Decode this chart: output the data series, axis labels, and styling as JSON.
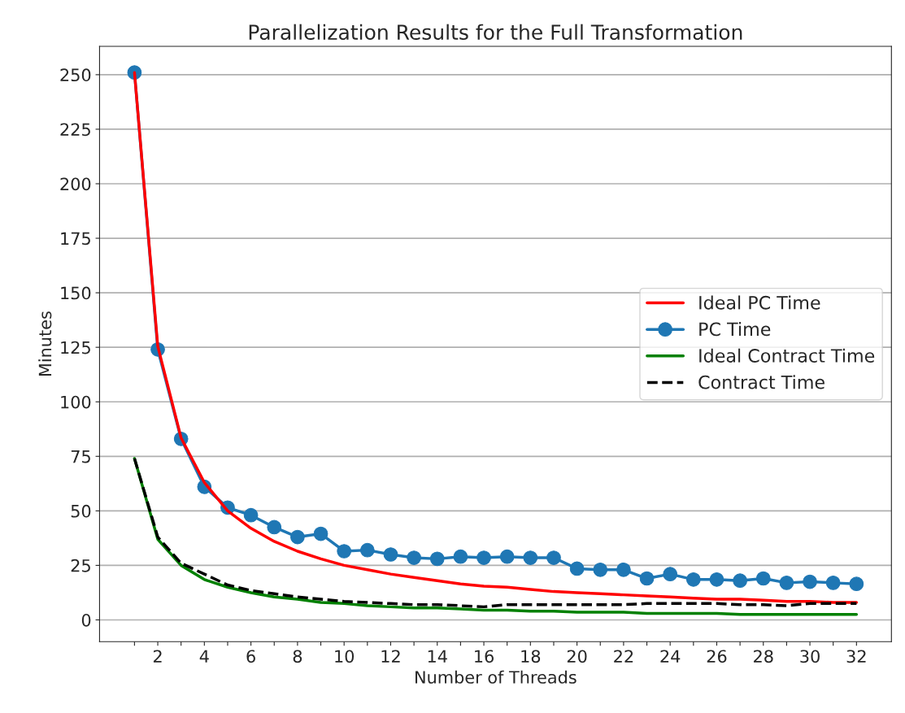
{
  "chart_data": {
    "type": "line",
    "title": "Parallelization Results for the Full Transformation",
    "xlabel": "Number of Threads",
    "ylabel": "Minutes",
    "x": [
      1,
      2,
      3,
      4,
      5,
      6,
      7,
      8,
      9,
      10,
      11,
      12,
      13,
      14,
      15,
      16,
      17,
      18,
      19,
      20,
      21,
      22,
      23,
      24,
      25,
      26,
      27,
      28,
      29,
      30,
      31,
      32
    ],
    "series": [
      {
        "name": "Ideal PC Time",
        "color": "#ff0000",
        "marker": "none",
        "line_style": "solid",
        "values": [
          251,
          125.5,
          83.5,
          63,
          50,
          42,
          36,
          31.5,
          28,
          25,
          23,
          21,
          19.5,
          18,
          16.5,
          15.5,
          15,
          14,
          13,
          12.5,
          12,
          11.5,
          11,
          10.5,
          10,
          9.5,
          9.5,
          9,
          8.5,
          8.5,
          8,
          8
        ]
      },
      {
        "name": "PC Time",
        "color": "#1f77b4",
        "marker": "circle",
        "line_style": "solid",
        "values": [
          251,
          124,
          83,
          61,
          51.5,
          48,
          42.5,
          38,
          39.5,
          31.5,
          32,
          30,
          28.5,
          28,
          29,
          28.5,
          29,
          28.5,
          28.5,
          23.5,
          23,
          23,
          19,
          21,
          18.5,
          18.5,
          18,
          19,
          17,
          17.5,
          17,
          16.5
        ]
      },
      {
        "name": "Ideal Contract Time",
        "color": "#008000",
        "marker": "none",
        "line_style": "solid",
        "values": [
          74,
          37,
          25,
          18.5,
          15,
          12.5,
          10.5,
          9.5,
          8,
          7.5,
          6.5,
          6,
          5.5,
          5.5,
          5,
          4.5,
          4.5,
          4,
          4,
          3.5,
          3.5,
          3.5,
          3,
          3,
          3,
          3,
          2.5,
          2.5,
          2.5,
          2.5,
          2.5,
          2.5
        ]
      },
      {
        "name": "Contract Time",
        "color": "#000000",
        "marker": "none",
        "line_style": "dashed",
        "values": [
          74,
          38,
          26,
          21,
          16,
          13.5,
          12,
          10.5,
          9.5,
          8.5,
          8,
          7.5,
          7,
          7,
          6.5,
          6,
          7,
          7,
          7,
          7,
          7,
          7,
          7.5,
          7.5,
          7.5,
          7.5,
          7,
          7,
          6.5,
          7.5,
          7.5,
          7.5
        ]
      }
    ],
    "xlim": [
      -0.5,
      33.5
    ],
    "ylim": [
      -10,
      263
    ],
    "xticks": [
      {
        "value": 1,
        "label": null
      },
      2,
      {
        "value": 3,
        "label": null
      },
      4,
      {
        "value": 5,
        "label": null
      },
      6,
      {
        "value": 7,
        "label": null
      },
      8,
      {
        "value": 9,
        "label": null
      },
      10,
      {
        "value": 11,
        "label": null
      },
      12,
      {
        "value": 13,
        "label": null
      },
      14,
      {
        "value": 15,
        "label": null
      },
      16,
      {
        "value": 17,
        "label": null
      },
      18,
      {
        "value": 19,
        "label": null
      },
      20,
      {
        "value": 21,
        "label": null
      },
      22,
      {
        "value": 23,
        "label": null
      },
      24,
      {
        "value": 25,
        "label": null
      },
      26,
      {
        "value": 27,
        "label": null
      },
      28,
      {
        "value": 29,
        "label": null
      },
      30,
      {
        "value": 31,
        "label": null
      },
      32
    ],
    "yticks": [
      0,
      25,
      50,
      75,
      100,
      125,
      150,
      175,
      200,
      225,
      250
    ],
    "grid": "y",
    "legend": "right"
  }
}
